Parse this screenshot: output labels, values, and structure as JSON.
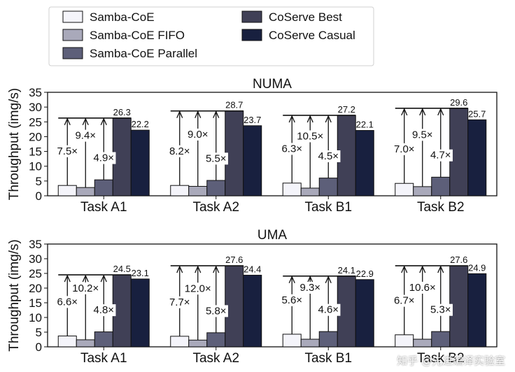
{
  "legend": {
    "items": [
      {
        "name": "Samba-CoE",
        "color": "#f4f4fa"
      },
      {
        "name": "Samba-CoE FIFO",
        "color": "#a9a9ba"
      },
      {
        "name": "Samba-CoE Parallel",
        "color": "#5d5f79"
      },
      {
        "name": "CoServe Best",
        "color": "#404056"
      },
      {
        "name": "CoServe Casual",
        "color": "#18203f"
      }
    ],
    "placement": "top"
  },
  "watermark": "知乎 @先进编译实验室",
  "chart_data": [
    {
      "type": "bar",
      "title": "NUMA",
      "ylabel": "Throughput (img/s)",
      "xlabel": "",
      "ylim": [
        0,
        35
      ],
      "yticks": [
        0,
        5,
        10,
        15,
        20,
        25,
        30,
        35
      ],
      "categories": [
        "Task A1",
        "Task A2",
        "Task B1",
        "Task B2"
      ],
      "series": [
        {
          "name": "Samba-CoE",
          "values": [
            3.5,
            3.5,
            4.3,
            4.2
          ]
        },
        {
          "name": "Samba-CoE FIFO",
          "values": [
            2.8,
            3.2,
            2.6,
            3.1
          ]
        },
        {
          "name": "Samba-CoE Parallel",
          "values": [
            5.4,
            5.2,
            6.0,
            6.3
          ]
        },
        {
          "name": "CoServe Best",
          "values": [
            26.3,
            28.7,
            27.2,
            29.6
          ]
        },
        {
          "name": "CoServe Casual",
          "values": [
            22.2,
            23.7,
            22.1,
            25.7
          ]
        }
      ],
      "speedups": [
        [
          "7.5×",
          "9.4×",
          "4.9×"
        ],
        [
          "8.2×",
          "9.0×",
          "5.5×"
        ],
        [
          "6.3×",
          "10.5×",
          "4.5×"
        ],
        [
          "7.0×",
          "9.5×",
          "4.7×"
        ]
      ],
      "grid": false
    },
    {
      "type": "bar",
      "title": "UMA",
      "ylabel": "Throughput (img/s)",
      "xlabel": "",
      "ylim": [
        0,
        35
      ],
      "yticks": [
        0,
        5,
        10,
        15,
        20,
        25,
        30,
        35
      ],
      "categories": [
        "Task A1",
        "Task A2",
        "Task B1",
        "Task B2"
      ],
      "series": [
        {
          "name": "Samba-CoE",
          "values": [
            3.7,
            3.6,
            4.3,
            4.1
          ]
        },
        {
          "name": "Samba-CoE FIFO",
          "values": [
            2.4,
            2.3,
            2.6,
            2.6
          ]
        },
        {
          "name": "Samba-CoE Parallel",
          "values": [
            5.1,
            4.8,
            5.2,
            5.2
          ]
        },
        {
          "name": "CoServe Best",
          "values": [
            24.5,
            27.6,
            24.1,
            27.6
          ]
        },
        {
          "name": "CoServe Casual",
          "values": [
            23.1,
            24.4,
            22.9,
            24.9
          ]
        }
      ],
      "speedups": [
        [
          "6.6×",
          "10.2×",
          "4.8×"
        ],
        [
          "7.7×",
          "12.0×",
          "5.8×"
        ],
        [
          "5.6×",
          "9.3×",
          "4.6×"
        ],
        [
          "6.7×",
          "10.6×",
          "5.3×"
        ]
      ],
      "grid": false
    }
  ]
}
